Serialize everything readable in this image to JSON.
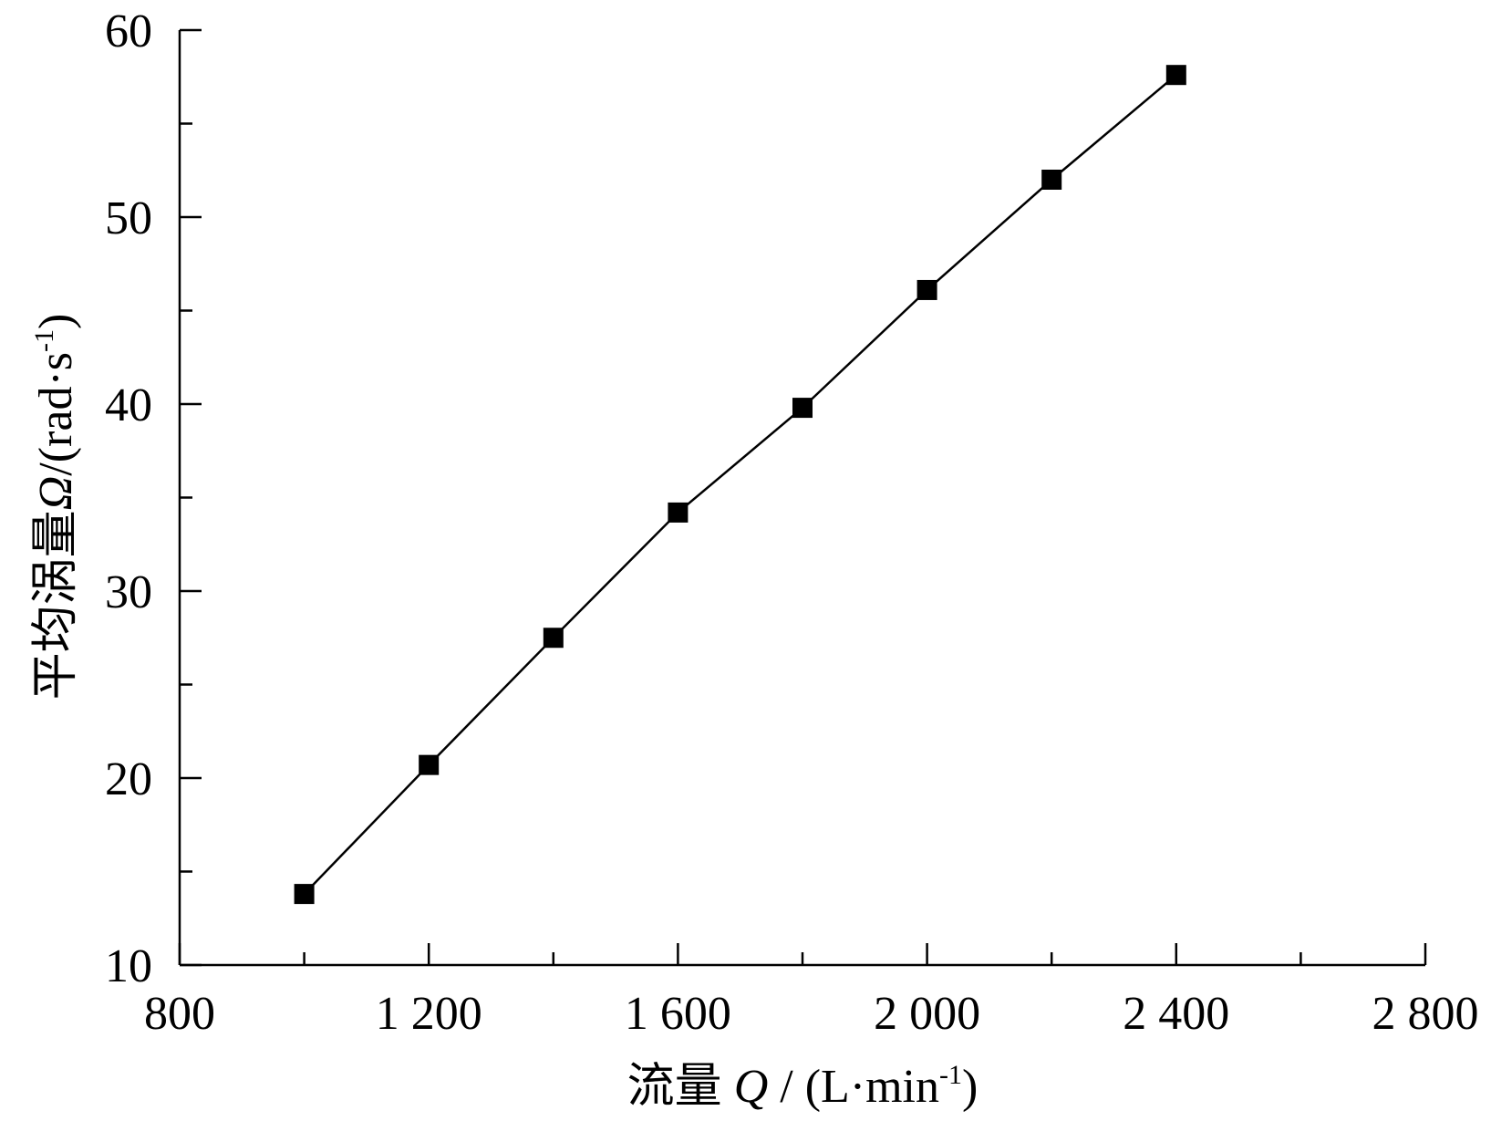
{
  "chart_data": {
    "type": "line",
    "xlabel": "流量 Q / (L·min-1)",
    "ylabel": "平均涡量Ω/(rad·s-1)",
    "xlabel_parts": {
      "prefix": "流量 ",
      "symbol": "Q",
      "middle": " / (L·min",
      "sup": "-1",
      "suffix": ")"
    },
    "ylabel_parts": {
      "prefix": "平均涡量",
      "symbol": "Ω",
      "middle": "/(rad·s",
      "sup": "-1",
      "suffix": ")"
    },
    "xlim": [
      800,
      2800
    ],
    "ylim": [
      10,
      60
    ],
    "x_ticks": [
      800,
      1200,
      1600,
      2000,
      2400,
      2800
    ],
    "x_tick_labels": [
      "800",
      "1 200",
      "1 600",
      "2 000",
      "2 400",
      "2 800"
    ],
    "x_minor_ticks": [
      1000,
      1400,
      1800,
      2200,
      2600
    ],
    "y_ticks": [
      10,
      20,
      30,
      40,
      50,
      60
    ],
    "y_tick_labels": [
      "10",
      "20",
      "30",
      "40",
      "50",
      "60"
    ],
    "y_minor_ticks": [
      15,
      25,
      35,
      45,
      55
    ],
    "grid": false,
    "marker": "square",
    "series": [
      {
        "x": [
          1000,
          1200,
          1400,
          1600,
          1800,
          2000,
          2200,
          2400
        ],
        "y": [
          13.8,
          20.7,
          27.5,
          34.2,
          39.8,
          46.1,
          52.0,
          57.6
        ]
      }
    ],
    "colors": {
      "line": "#000000",
      "marker": "#000000",
      "axis": "#000000"
    }
  }
}
